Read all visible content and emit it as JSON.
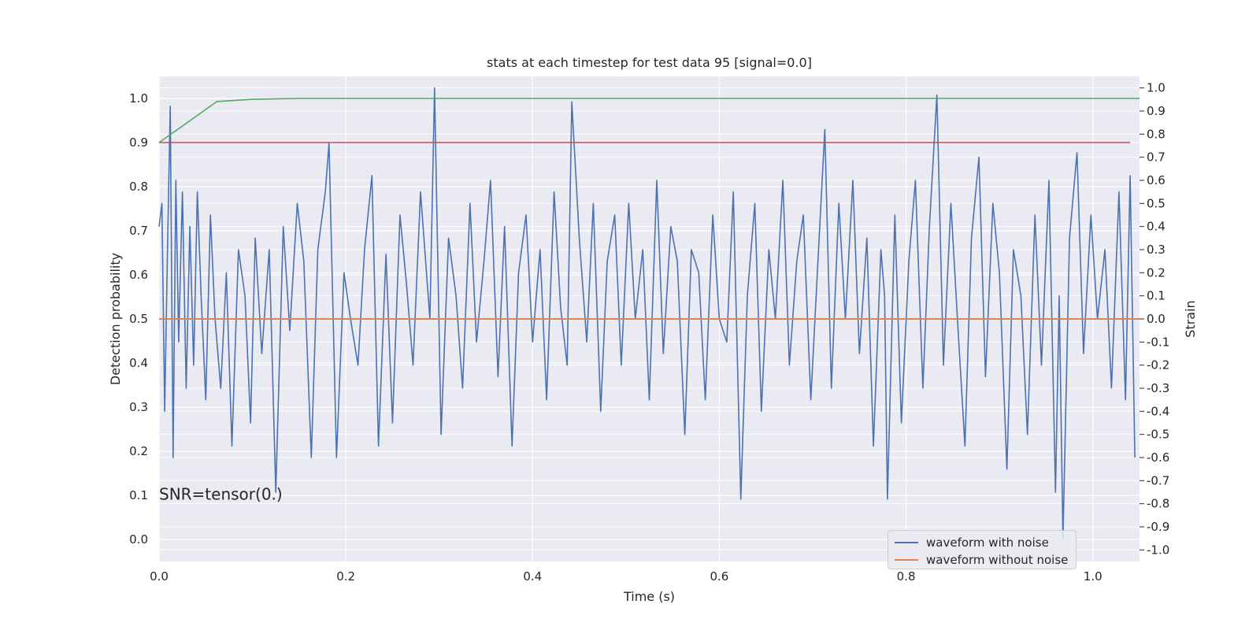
{
  "chart_data": {
    "type": "line",
    "title": "stats at each timestep for test data 95 [signal=0.0]",
    "xlabel": "Time (s)",
    "ylabel_left": "Detection probability",
    "ylabel_right": "Strain",
    "xlim": [
      0.0,
      1.05
    ],
    "ylim_left": [
      -0.05,
      1.05
    ],
    "ylim_right": [
      -1.05,
      1.05
    ],
    "x_ticks": [
      "0.0",
      "0.2",
      "0.4",
      "0.6",
      "0.8",
      "1.0"
    ],
    "y_left_ticks": [
      "0.0",
      "0.1",
      "0.2",
      "0.3",
      "0.4",
      "0.5",
      "0.6",
      "0.7",
      "0.8",
      "0.9",
      "1.0"
    ],
    "y_right_ticks": [
      "-1.0",
      "-0.9",
      "-0.8",
      "-0.7",
      "-0.6",
      "-0.5",
      "-0.4",
      "-0.3",
      "-0.2",
      "-0.1",
      "0.0",
      "0.1",
      "0.2",
      "0.3",
      "0.4",
      "0.5",
      "0.6",
      "0.7",
      "0.8",
      "0.9",
      "1.0"
    ],
    "grid": true,
    "legend_position": "lower-right",
    "annotation": "SNR=tensor(0.)",
    "series": [
      {
        "name": "waveform with noise",
        "axis": "right",
        "color": "#4c72b0",
        "style": "dense noise trace spanning roughly -0.95 to 1.0 strain",
        "x": [
          0.0,
          0.003,
          0.006,
          0.009,
          0.012,
          0.015,
          0.018,
          0.021,
          0.025,
          0.029,
          0.033,
          0.037,
          0.041,
          0.045,
          0.05,
          0.055,
          0.06,
          0.066,
          0.072,
          0.078,
          0.085,
          0.092,
          0.098,
          0.103,
          0.11,
          0.118,
          0.125,
          0.133,
          0.14,
          0.148,
          0.155,
          0.163,
          0.17,
          0.178,
          0.182,
          0.19,
          0.198,
          0.205,
          0.213,
          0.22,
          0.228,
          0.235,
          0.243,
          0.25,
          0.258,
          0.265,
          0.272,
          0.28,
          0.29,
          0.295,
          0.302,
          0.31,
          0.318,
          0.325,
          0.333,
          0.34,
          0.348,
          0.355,
          0.363,
          0.37,
          0.378,
          0.385,
          0.393,
          0.4,
          0.408,
          0.415,
          0.423,
          0.43,
          0.437,
          0.442,
          0.45,
          0.458,
          0.465,
          0.473,
          0.48,
          0.488,
          0.495,
          0.503,
          0.51,
          0.518,
          0.525,
          0.533,
          0.54,
          0.548,
          0.555,
          0.563,
          0.57,
          0.578,
          0.585,
          0.593,
          0.6,
          0.608,
          0.615,
          0.623,
          0.63,
          0.638,
          0.645,
          0.653,
          0.66,
          0.668,
          0.675,
          0.683,
          0.69,
          0.698,
          0.705,
          0.713,
          0.72,
          0.728,
          0.735,
          0.743,
          0.75,
          0.758,
          0.765,
          0.773,
          0.777,
          0.78,
          0.788,
          0.795,
          0.803,
          0.81,
          0.818,
          0.825,
          0.833,
          0.84,
          0.848,
          0.855,
          0.863,
          0.87,
          0.878,
          0.885,
          0.893,
          0.9,
          0.908,
          0.915,
          0.923,
          0.93,
          0.938,
          0.945,
          0.953,
          0.96,
          0.964,
          0.968,
          0.975,
          0.983,
          0.99,
          0.998,
          1.005,
          1.013,
          1.02,
          1.028,
          1.035,
          1.04,
          1.045
        ],
        "values": [
          0.4,
          0.5,
          -0.4,
          0.3,
          0.92,
          -0.6,
          0.6,
          -0.1,
          0.55,
          -0.3,
          0.4,
          -0.2,
          0.55,
          0.1,
          -0.35,
          0.45,
          0.0,
          -0.3,
          0.2,
          -0.55,
          0.3,
          0.1,
          -0.45,
          0.35,
          -0.15,
          0.3,
          -0.75,
          0.4,
          -0.05,
          0.5,
          0.25,
          -0.6,
          0.3,
          0.55,
          0.76,
          -0.6,
          0.2,
          0.0,
          -0.2,
          0.3,
          0.62,
          -0.55,
          0.28,
          -0.45,
          0.45,
          0.15,
          -0.2,
          0.55,
          0.0,
          1.0,
          -0.5,
          0.35,
          0.1,
          -0.3,
          0.5,
          -0.1,
          0.25,
          0.6,
          -0.25,
          0.4,
          -0.55,
          0.2,
          0.45,
          -0.1,
          0.3,
          -0.35,
          0.55,
          0.05,
          -0.2,
          0.94,
          0.35,
          -0.1,
          0.5,
          -0.4,
          0.25,
          0.45,
          -0.2,
          0.5,
          0.0,
          0.3,
          -0.35,
          0.6,
          -0.15,
          0.4,
          0.25,
          -0.5,
          0.3,
          0.2,
          -0.35,
          0.45,
          0.0,
          -0.1,
          0.55,
          -0.78,
          0.1,
          0.5,
          -0.4,
          0.3,
          0.0,
          0.6,
          -0.2,
          0.25,
          0.45,
          -0.35,
          0.2,
          0.82,
          -0.3,
          0.5,
          0.0,
          0.6,
          -0.15,
          0.35,
          -0.55,
          0.3,
          0.1,
          -0.78,
          0.45,
          -0.45,
          0.25,
          0.6,
          -0.3,
          0.4,
          0.97,
          -0.2,
          0.5,
          0.0,
          -0.55,
          0.35,
          0.7,
          -0.25,
          0.5,
          0.2,
          -0.65,
          0.3,
          0.1,
          -0.5,
          0.45,
          -0.2,
          0.6,
          -0.75,
          0.1,
          -0.95,
          0.35,
          0.72,
          -0.15,
          0.45,
          0.0,
          0.3,
          -0.3,
          0.55,
          -0.35,
          0.62,
          -0.6
        ]
      },
      {
        "name": "waveform without noise",
        "axis": "right",
        "color": "#dd8452",
        "x": [
          0.0,
          1.05
        ],
        "values": [
          0.0,
          0.0
        ]
      },
      {
        "axis": "left",
        "color": "#c44e52",
        "x": [
          0.0,
          1.04
        ],
        "values": [
          0.9,
          0.9
        ]
      },
      {
        "axis": "left",
        "color": "#55a868",
        "x": [
          0.0,
          0.03,
          0.062,
          0.1,
          0.15,
          0.25,
          1.05
        ],
        "values": [
          0.9,
          0.945,
          0.993,
          0.998,
          1.0,
          1.0,
          1.0
        ]
      }
    ]
  }
}
